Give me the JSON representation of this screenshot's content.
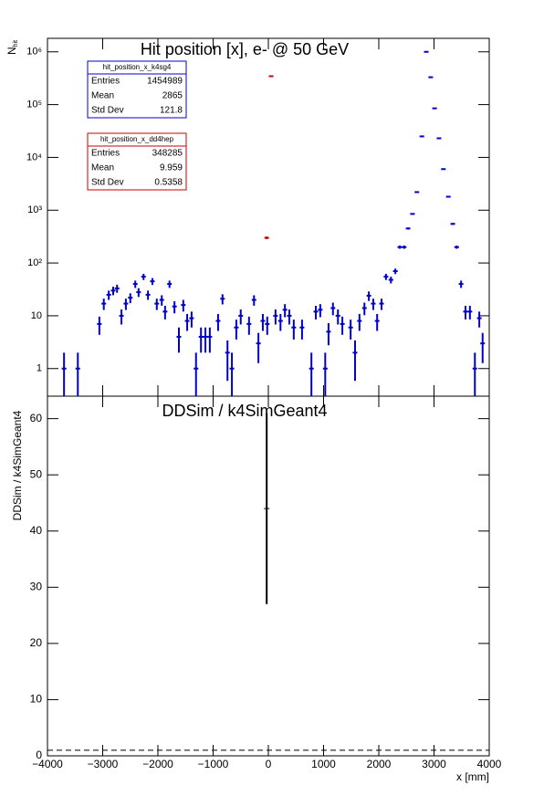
{
  "chart_data": [
    {
      "type": "points",
      "title": "Hit position [x],  e- @ 50 GeV",
      "ylabel": {
        "text": "N",
        "subscript": "hit"
      },
      "xlim": [
        -4000,
        4000
      ],
      "ylim": [
        0.3,
        1800000
      ],
      "log_y": true,
      "bin_width": 83,
      "yticks": [
        {
          "value": 1,
          "label": "1"
        },
        {
          "value": 10,
          "label": "10"
        },
        {
          "value": 100,
          "label": "10²"
        },
        {
          "value": 1000,
          "label": "10³"
        },
        {
          "value": 10000,
          "label": "10⁴"
        },
        {
          "value": 100000,
          "label": "10⁵"
        },
        {
          "value": 1000000,
          "label": "10⁶"
        }
      ],
      "series": [
        {
          "name": "hit_position_x_k4sg4",
          "color": "#0000cc",
          "stats": {
            "Entries": 1454989,
            "Mean": 2865,
            "Std Dev": 121.8
          },
          "x": [
            -3700,
            -3450,
            -3060,
            -2980,
            -2890,
            -2810,
            -2740,
            -2660,
            -2580,
            -2500,
            -2410,
            -2350,
            -2260,
            -2180,
            -2100,
            -2020,
            -1930,
            -1870,
            -1790,
            -1700,
            -1620,
            -1540,
            -1470,
            -1390,
            -1310,
            -1220,
            -1140,
            -1060,
            -910,
            -830,
            -740,
            -660,
            -580,
            -500,
            -350,
            -260,
            -180,
            -100,
            -20,
            130,
            220,
            300,
            380,
            460,
            610,
            780,
            860,
            940,
            1030,
            1090,
            1170,
            1260,
            1340,
            1490,
            1570,
            1650,
            1740,
            1820,
            1900,
            1970,
            2050,
            2130,
            2220,
            2300,
            2380,
            2460,
            2530,
            2610,
            2690,
            2780,
            2860,
            2940,
            3010,
            3090,
            3170,
            3260,
            3340,
            3410,
            3490,
            3570,
            3650,
            3740,
            3820,
            3880
          ],
          "values": [
            1,
            1,
            7,
            17,
            25,
            30,
            33,
            10,
            17,
            22,
            40,
            28,
            55,
            25,
            45,
            17,
            20,
            12,
            40,
            15,
            4,
            16,
            8,
            9,
            1,
            4,
            4,
            4,
            8,
            21,
            2,
            1,
            6,
            10,
            7,
            20,
            3,
            8,
            7,
            10,
            8,
            13,
            10,
            6,
            6,
            1,
            12,
            13,
            1,
            5,
            14,
            10,
            7,
            6,
            2,
            8,
            14,
            24,
            17,
            8,
            17,
            55,
            48,
            70,
            200,
            200,
            450,
            850,
            2200,
            25000,
            1000000,
            330000,
            85000,
            23000,
            6000,
            1800,
            550,
            200,
            40,
            12,
            12,
            1,
            9,
            3
          ]
        },
        {
          "name": "hit_position_x_dd4hep",
          "color": "#cc0000",
          "stats": {
            "Entries": 348285,
            "Mean": 9.959,
            "Std Dev": 0.5358
          },
          "x": [
            -30,
            50
          ],
          "values": [
            300,
            345000
          ]
        }
      ]
    },
    {
      "type": "ratio",
      "title": "DDSim / k4SimGeant4",
      "ylabel": "DDSim / k4SimGeant4",
      "xlabel": "x [mm]",
      "xlim": [
        -4000,
        4000
      ],
      "ylim": [
        0,
        64
      ],
      "reference_line": 1,
      "xticks": [
        {
          "value": -4000,
          "label": "−4000"
        },
        {
          "value": -3000,
          "label": "−3000"
        },
        {
          "value": -2000,
          "label": "−2000"
        },
        {
          "value": -1000,
          "label": "−1000"
        },
        0,
        1000,
        2000,
        3000,
        4000
      ],
      "yticks": [
        0,
        10,
        20,
        30,
        40,
        50,
        60
      ],
      "series": [
        {
          "color": "#000000",
          "x": [
            -30
          ],
          "values": [
            44
          ],
          "errors": [
            17
          ]
        }
      ]
    }
  ]
}
